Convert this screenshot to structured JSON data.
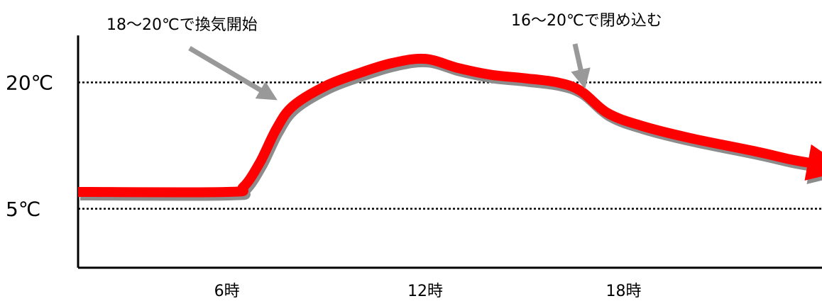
{
  "chart_data": {
    "type": "line",
    "title": "",
    "xlabel": "",
    "ylabel": "",
    "x_ticks": [
      {
        "x": 6,
        "label": "6時"
      },
      {
        "x": 12,
        "label": "12時"
      },
      {
        "x": 18,
        "label": "18時"
      }
    ],
    "xlim": [
      1.5,
      24
    ],
    "ylim": [
      -2,
      26
    ],
    "reference_lines": [
      {
        "y": 20,
        "label": "20℃",
        "style": "dotted"
      },
      {
        "y": 5,
        "label": "5℃",
        "style": "dotted"
      }
    ],
    "series": [
      {
        "name": "",
        "color": "#ff0000",
        "shadow_color": "#8c8c8c",
        "end_marker": "arrow",
        "points": [
          [
            1.5,
            7.0
          ],
          [
            6.0,
            7.0
          ],
          [
            6.5,
            7.6
          ],
          [
            7.0,
            10.5
          ],
          [
            7.5,
            14.5
          ],
          [
            8.0,
            17.2
          ],
          [
            9.0,
            19.6
          ],
          [
            10.0,
            21.1
          ],
          [
            11.0,
            22.3
          ],
          [
            12.0,
            22.8
          ],
          [
            13.0,
            21.7
          ],
          [
            14.0,
            20.9
          ],
          [
            15.0,
            20.5
          ],
          [
            16.0,
            20.0
          ],
          [
            16.7,
            19.0
          ],
          [
            17.5,
            16.4
          ],
          [
            18.5,
            14.9
          ],
          [
            20.0,
            13.4
          ],
          [
            22.0,
            11.8
          ],
          [
            23.0,
            10.9
          ],
          [
            23.7,
            10.4
          ]
        ]
      }
    ],
    "annotations": [
      {
        "text": "18〜20℃で換気開始",
        "target": [
          7.4,
          18.2
        ],
        "arrow_color": "#999999"
      },
      {
        "text": "16〜20℃で閉め込む",
        "target": [
          16.8,
          19.8
        ],
        "arrow_color": "#999999"
      }
    ]
  }
}
